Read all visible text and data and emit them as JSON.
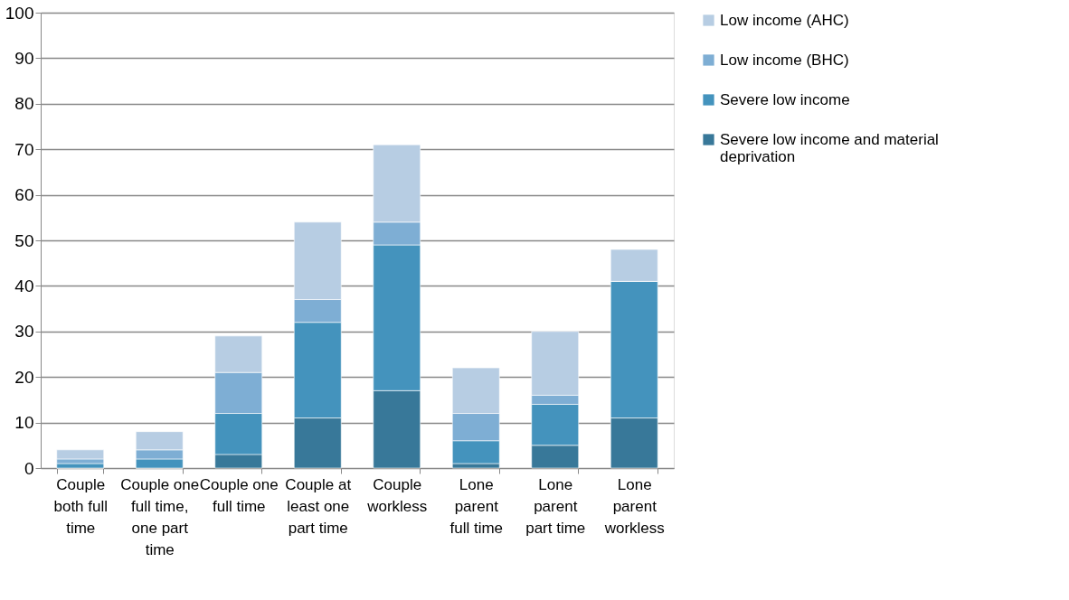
{
  "chart_data": {
    "type": "bar",
    "stacked": true,
    "categories": [
      "Couple both full time",
      "Couple one full time, one part time",
      "Couple one full time",
      "Couple at least one part time",
      "Couple workless",
      "Lone parent full time",
      "Lone parent part time",
      "Lone parent workless"
    ],
    "series": [
      {
        "name": "Severe low income and material deprivation",
        "color": "#387899",
        "values": [
          0,
          0,
          3,
          11,
          17,
          1,
          5,
          11
        ]
      },
      {
        "name": "Severe low income",
        "color": "#4493bd",
        "values": [
          1,
          2,
          9,
          21,
          32,
          5,
          9,
          30
        ]
      },
      {
        "name": "Low income (BHC)",
        "color": "#7eaed4",
        "values": [
          1,
          2,
          9,
          5,
          5,
          6,
          2,
          0
        ]
      },
      {
        "name": "Low income (AHC)",
        "color": "#b7cde3",
        "values": [
          2,
          4,
          8,
          17,
          17,
          10,
          14,
          7
        ]
      }
    ],
    "ylim": [
      0,
      100
    ],
    "yticks": [
      0,
      10,
      20,
      30,
      40,
      50,
      60,
      70,
      80,
      90,
      100
    ],
    "grid": "y",
    "legend": "right"
  }
}
